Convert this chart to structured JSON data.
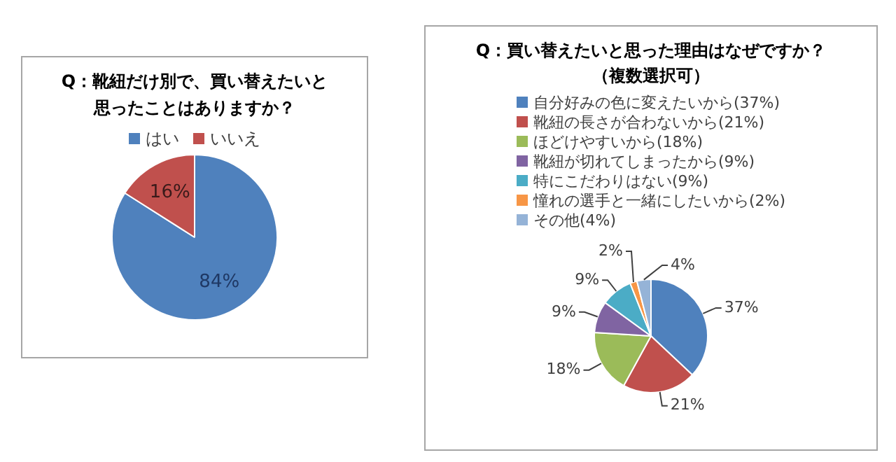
{
  "chart_data": [
    {
      "type": "pie",
      "title": "Q：靴紐だけ別で、買い替えたいと思ったことはありますか？",
      "categories": [
        "はい",
        "いいえ"
      ],
      "values": [
        84,
        16
      ],
      "colors": [
        "#4f81bd",
        "#c0504d"
      ],
      "value_labels": [
        "84%",
        "16%"
      ],
      "legend": "top"
    },
    {
      "type": "pie",
      "title": "Q：買い替えたいと思った理由はなぜですか？",
      "subtitle": "（複数選択可）",
      "categories": [
        "自分好みの色に変えたいから(37%)",
        "靴紐の長さが合わないから(21%)",
        "ほどけやすいから(18%)",
        "靴紐が切れてしまったから(9%)",
        "特にこだわりはない(9%)",
        "憧れの選手と一緒にしたいから(2%)",
        "その他(4%)"
      ],
      "values": [
        37,
        21,
        18,
        9,
        9,
        2,
        4
      ],
      "colors": [
        "#4f81bd",
        "#c0504d",
        "#9bbb59",
        "#8064a2",
        "#4bacc6",
        "#f79646",
        "#95b3d7"
      ],
      "value_labels": [
        "37%",
        "21%",
        "18%",
        "9%",
        "9%",
        "2%",
        "4%"
      ],
      "legend": "top"
    }
  ]
}
